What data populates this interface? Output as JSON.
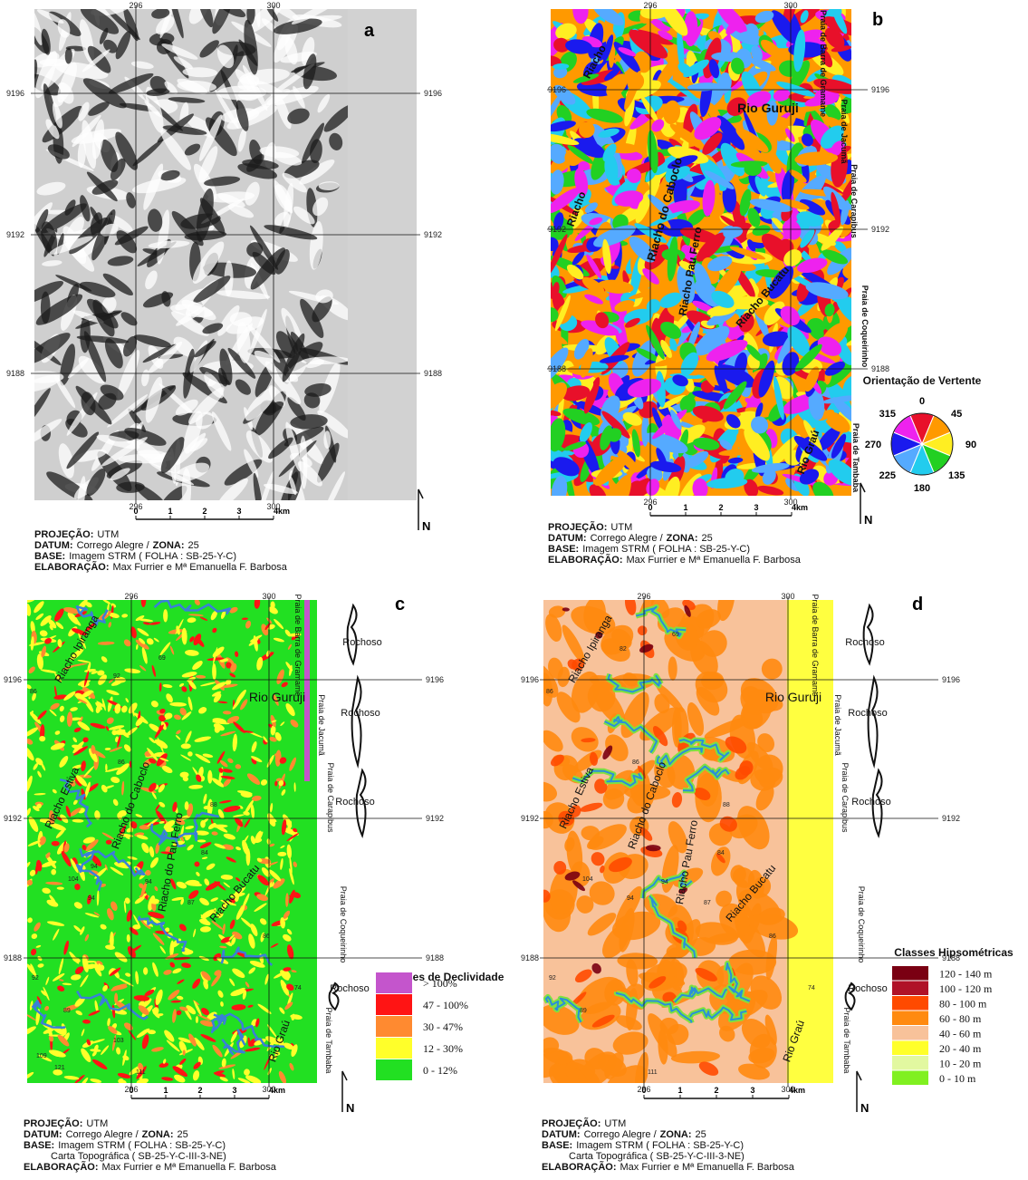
{
  "panels": [
    {
      "letter": "a",
      "top_ticks": [
        "296",
        "300"
      ],
      "bottom_ticks": [
        "296",
        "300"
      ],
      "left_ticks": [
        "9196",
        "9192",
        "9188"
      ],
      "right_ticks": [
        "9196",
        "9192",
        "9188"
      ],
      "scale": [
        "0",
        "1",
        "2",
        "3",
        "4km"
      ],
      "north": "N",
      "credits": [
        [
          {
            "strong": "PROJEÇÃO:"
          },
          {
            "plain": "UTM"
          }
        ],
        [
          {
            "strong": "DATUM:"
          },
          {
            "plain": "Corrego Alegre /"
          },
          {
            "strong": "ZONA:"
          },
          {
            "plain": "25"
          }
        ],
        [
          {
            "strong": "BASE:"
          },
          {
            "plain": "Imagem STRM ( FOLHA : SB-25-Y-C)"
          }
        ],
        [
          {
            "strong": "ELABORAÇÃO:"
          },
          {
            "plain": "Max Furrier e Mª Emanuella F. Barbosa"
          }
        ]
      ]
    },
    {
      "letter": "b",
      "top_ticks": [
        "296",
        "300"
      ],
      "bottom_ticks": [
        "296",
        "300"
      ],
      "left_ticks": [
        "9196",
        "9192",
        "9188"
      ],
      "right_ticks": [
        "9196",
        "9192",
        "9188"
      ],
      "scale": [
        "0",
        "1",
        "2",
        "3",
        "4km"
      ],
      "north": "N",
      "places": [
        "Riacho",
        "Praia de Barra de Gramame",
        "Rio Guruji",
        "Praia de Jacumã",
        "Praia de Carapibus",
        "Riacho",
        "Riacho do Caboclo",
        "Riacho Pau Ferro",
        "Riacho Bucatu",
        "Praia de Coqueirinho",
        "Praia de Tambaba",
        "Rio Graú"
      ],
      "legend": {
        "title": "Orientação de Vertente",
        "items": [
          {
            "label": "0",
            "color": "#e8102a"
          },
          {
            "label": "45",
            "color": "#ff9900"
          },
          {
            "label": "90",
            "color": "#ffee22"
          },
          {
            "label": "135",
            "color": "#22d022"
          },
          {
            "label": "180",
            "color": "#22ccee"
          },
          {
            "label": "225",
            "color": "#55aaff"
          },
          {
            "label": "270",
            "color": "#1a1aee"
          },
          {
            "label": "315",
            "color": "#ee22ee"
          }
        ]
      },
      "credits": [
        [
          {
            "strong": "PROJEÇÃO:"
          },
          {
            "plain": "UTM"
          }
        ],
        [
          {
            "strong": "DATUM:"
          },
          {
            "plain": "Corrego Alegre /"
          },
          {
            "strong": "ZONA:"
          },
          {
            "plain": "25"
          }
        ],
        [
          {
            "strong": "BASE:"
          },
          {
            "plain": "Imagem STRM ( FOLHA : SB-25-Y-C)"
          }
        ],
        [
          {
            "strong": "ELABORAÇÃO:"
          },
          {
            "plain": "Max Furrier e Mª Emanuella F. Barbosa"
          }
        ]
      ]
    },
    {
      "letter": "c",
      "top_ticks": [
        "296",
        "300"
      ],
      "bottom_ticks": [
        "296",
        "300"
      ],
      "left_ticks": [
        "9196",
        "9192",
        "9188"
      ],
      "right_ticks": [
        "9196",
        "9192",
        "9188"
      ],
      "scale": [
        "0",
        "1",
        "2",
        "3",
        "4km"
      ],
      "north": "N",
      "places": [
        "Riacho Ipiranga",
        "Praia de Barra de Gramame",
        "Rio Guruji",
        "Praia de Jacumã",
        "Rochoso",
        "Rochoso",
        "Rochoso",
        "Rochoso",
        "Praia de Carapibus",
        "Riacho Estiva",
        "Riacho do Caboclo",
        "Riacho do Pau Ferro",
        "Riacho Bucatu",
        "Praia de Coqueirinho",
        "Praia de Tambaba",
        "Rio Graú"
      ],
      "spot_heights": [
        "69",
        "92",
        "86",
        "86",
        "88",
        "84",
        "94",
        "94",
        "104",
        "94",
        "87",
        "86",
        "74",
        "92",
        "89",
        "103",
        "109",
        "121",
        "111"
      ],
      "legend": {
        "title": "Classes de Declividade",
        "items": [
          {
            "label": "> 100%",
            "color": "#c455cc"
          },
          {
            "label": "47 - 100%",
            "color": "#ff1414"
          },
          {
            "label": "30 - 47%",
            "color": "#ff8a30"
          },
          {
            "label": "12 - 30%",
            "color": "#ffff2a"
          },
          {
            "label": "0 - 12%",
            "color": "#22e022"
          }
        ]
      },
      "credits": [
        [
          {
            "strong": "PROJEÇÃO:"
          },
          {
            "plain": "UTM"
          }
        ],
        [
          {
            "strong": "DATUM:"
          },
          {
            "plain": "Corrego Alegre /"
          },
          {
            "strong": "ZONA:"
          },
          {
            "plain": "25"
          }
        ],
        [
          {
            "strong": "BASE:"
          },
          {
            "plain": "Imagem STRM ( FOLHA : SB-25-Y-C)"
          }
        ],
        [
          {
            "plain": "Carta Topográfica ( SB-25-Y-C-III-3-NE)"
          }
        ],
        [
          {
            "strong": "ELABORAÇÃO:"
          },
          {
            "plain": "Max Furrier e Mª Emanuella F. Barbosa"
          }
        ]
      ]
    },
    {
      "letter": "d",
      "top_ticks": [
        "296",
        "300"
      ],
      "bottom_ticks": [
        "296",
        "300"
      ],
      "left_ticks": [
        "9196",
        "9192",
        "9188"
      ],
      "right_ticks": [
        "9196",
        "9192",
        "9188"
      ],
      "scale": [
        "0",
        "1",
        "2",
        "3",
        "4km"
      ],
      "north": "N",
      "places": [
        "Riacho Ipiranga",
        "Praia de Barra de Gramame",
        "Rio Guruji",
        "Praia de Jacumã",
        "Rochoso",
        "Rochoso",
        "Rochoso",
        "Rochoso",
        "Praia de Carapibus",
        "Riacho Estiva",
        "Riacho do Caboclo",
        "Riacho Pau Ferro",
        "Riacho Bucatu",
        "Praia de Coqueirinho",
        "Praia de Tambaba",
        "Rio Graú"
      ],
      "spot_heights": [
        "69",
        "82",
        "86",
        "86",
        "88",
        "84",
        "104",
        "94",
        "94",
        "87",
        "86",
        "74",
        "92",
        "89",
        "111"
      ],
      "legend": {
        "title": "Classes Hipsométricas",
        "items": [
          {
            "label": "120 - 140 m",
            "color": "#7a0012"
          },
          {
            "label": "100 - 120 m",
            "color": "#b01228"
          },
          {
            "label": "80 - 100 m",
            "color": "#ff4a00"
          },
          {
            "label": "60 - 80 m",
            "color": "#ff8a10"
          },
          {
            "label": "40 - 60 m",
            "color": "#f8c29a"
          },
          {
            "label": "20 - 40 m",
            "color": "#ffff2a"
          },
          {
            "label": "10 - 20 m",
            "color": "#e2f8a0"
          },
          {
            "label": "0 - 10 m",
            "color": "#80f020"
          }
        ]
      },
      "credits": [
        [
          {
            "strong": "PROJEÇÃO:"
          },
          {
            "plain": "UTM"
          }
        ],
        [
          {
            "strong": "DATUM:"
          },
          {
            "plain": "Corrego Alegre /"
          },
          {
            "strong": "ZONA:"
          },
          {
            "plain": "25"
          }
        ],
        [
          {
            "strong": "BASE:"
          },
          {
            "plain": "Imagem STRM ( FOLHA : SB-25-Y-C)"
          }
        ],
        [
          {
            "plain": "Carta Topográfica ( SB-25-Y-C-III-3-NE)"
          }
        ],
        [
          {
            "strong": "ELABORAÇÃO:"
          },
          {
            "plain": "Max Furrier e Mª Emanuella F. Barbosa"
          }
        ]
      ]
    }
  ]
}
